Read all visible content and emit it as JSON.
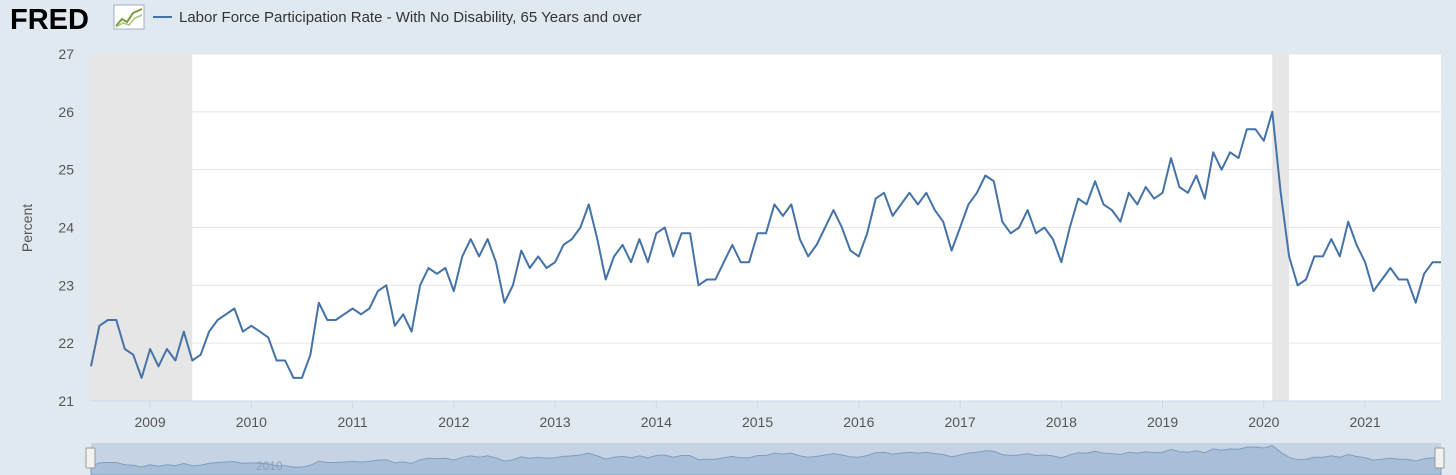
{
  "header": {
    "logo_text": "FRED",
    "legend_label": "Labor Force Participation Rate - With No Disability, 65 Years and over"
  },
  "colors": {
    "background": "#e1e9f0",
    "plot_background": "#ffffff",
    "series_line": "#4572a7",
    "recession_band": "#e6e6e6",
    "navigator_fill": "#a9bfd8",
    "navigator_bar": "#c5d3e4",
    "logo": "#000000"
  },
  "navigator": {
    "year_label": "2010"
  },
  "chart_data": {
    "type": "line",
    "ylabel": "Percent",
    "ylim": [
      21,
      27
    ],
    "y_ticks": [
      "21",
      "22",
      "23",
      "24",
      "25",
      "26",
      "27"
    ],
    "x_ticks": [
      "2009",
      "2010",
      "2011",
      "2012",
      "2013",
      "2014",
      "2015",
      "2016",
      "2017",
      "2018",
      "2019",
      "2020",
      "2021"
    ],
    "x_range": [
      "2008-06",
      "2021-10"
    ],
    "recessions": [
      [
        "2008-06",
        "2009-06"
      ],
      [
        "2020-02",
        "2020-04"
      ]
    ],
    "grid": true,
    "legend": "top-left",
    "series": [
      {
        "name": "Labor Force Participation Rate - With No Disability, 65 Years and over",
        "x": [
          "2008-06",
          "2008-07",
          "2008-08",
          "2008-09",
          "2008-10",
          "2008-11",
          "2008-12",
          "2009-01",
          "2009-02",
          "2009-03",
          "2009-04",
          "2009-05",
          "2009-06",
          "2009-07",
          "2009-08",
          "2009-09",
          "2009-10",
          "2009-11",
          "2009-12",
          "2010-01",
          "2010-02",
          "2010-03",
          "2010-04",
          "2010-05",
          "2010-06",
          "2010-07",
          "2010-08",
          "2010-09",
          "2010-10",
          "2010-11",
          "2010-12",
          "2011-01",
          "2011-02",
          "2011-03",
          "2011-04",
          "2011-05",
          "2011-06",
          "2011-07",
          "2011-08",
          "2011-09",
          "2011-10",
          "2011-11",
          "2011-12",
          "2012-01",
          "2012-02",
          "2012-03",
          "2012-04",
          "2012-05",
          "2012-06",
          "2012-07",
          "2012-08",
          "2012-09",
          "2012-10",
          "2012-11",
          "2012-12",
          "2013-01",
          "2013-02",
          "2013-03",
          "2013-04",
          "2013-05",
          "2013-06",
          "2013-07",
          "2013-08",
          "2013-09",
          "2013-10",
          "2013-11",
          "2013-12",
          "2014-01",
          "2014-02",
          "2014-03",
          "2014-04",
          "2014-05",
          "2014-06",
          "2014-07",
          "2014-08",
          "2014-09",
          "2014-10",
          "2014-11",
          "2014-12",
          "2015-01",
          "2015-02",
          "2015-03",
          "2015-04",
          "2015-05",
          "2015-06",
          "2015-07",
          "2015-08",
          "2015-09",
          "2015-10",
          "2015-11",
          "2015-12",
          "2016-01",
          "2016-02",
          "2016-03",
          "2016-04",
          "2016-05",
          "2016-06",
          "2016-07",
          "2016-08",
          "2016-09",
          "2016-10",
          "2016-11",
          "2016-12",
          "2017-01",
          "2017-02",
          "2017-03",
          "2017-04",
          "2017-05",
          "2017-06",
          "2017-07",
          "2017-08",
          "2017-09",
          "2017-10",
          "2017-11",
          "2017-12",
          "2018-01",
          "2018-02",
          "2018-03",
          "2018-04",
          "2018-05",
          "2018-06",
          "2018-07",
          "2018-08",
          "2018-09",
          "2018-10",
          "2018-11",
          "2018-12",
          "2019-01",
          "2019-02",
          "2019-03",
          "2019-04",
          "2019-05",
          "2019-06",
          "2019-07",
          "2019-08",
          "2019-09",
          "2019-10",
          "2019-11",
          "2019-12",
          "2020-01",
          "2020-02",
          "2020-03",
          "2020-04",
          "2020-05",
          "2020-06",
          "2020-07",
          "2020-08",
          "2020-09",
          "2020-10",
          "2020-11",
          "2020-12",
          "2021-01",
          "2021-02",
          "2021-03",
          "2021-04",
          "2021-05",
          "2021-06",
          "2021-07",
          "2021-08",
          "2021-09",
          "2021-10"
        ],
        "values": [
          21.6,
          22.3,
          22.4,
          22.4,
          21.9,
          21.8,
          21.4,
          21.9,
          21.6,
          21.9,
          21.7,
          22.2,
          21.7,
          21.8,
          22.2,
          22.4,
          22.5,
          22.6,
          22.2,
          22.3,
          22.2,
          22.1,
          21.7,
          21.7,
          21.4,
          21.4,
          21.8,
          22.7,
          22.4,
          22.4,
          22.5,
          22.6,
          22.5,
          22.6,
          22.9,
          23.0,
          22.3,
          22.5,
          22.2,
          23.0,
          23.3,
          23.2,
          23.3,
          22.9,
          23.5,
          23.8,
          23.5,
          23.8,
          23.4,
          22.7,
          23.0,
          23.6,
          23.3,
          23.5,
          23.3,
          23.4,
          23.7,
          23.8,
          24.0,
          24.4,
          23.8,
          23.1,
          23.5,
          23.7,
          23.4,
          23.8,
          23.4,
          23.9,
          24.0,
          23.5,
          23.9,
          23.9,
          23.0,
          23.1,
          23.1,
          23.4,
          23.7,
          23.4,
          23.4,
          23.9,
          23.9,
          24.4,
          24.2,
          24.4,
          23.8,
          23.5,
          23.7,
          24.0,
          24.3,
          24.0,
          23.6,
          23.5,
          23.9,
          24.5,
          24.6,
          24.2,
          24.4,
          24.6,
          24.4,
          24.6,
          24.3,
          24.1,
          23.6,
          24.0,
          24.4,
          24.6,
          24.9,
          24.8,
          24.1,
          23.9,
          24.0,
          24.3,
          23.9,
          24.0,
          23.8,
          23.4,
          24.0,
          24.5,
          24.4,
          24.8,
          24.4,
          24.3,
          24.1,
          24.6,
          24.4,
          24.7,
          24.5,
          24.6,
          25.2,
          24.7,
          24.6,
          24.9,
          24.5,
          25.3,
          25.0,
          25.3,
          25.2,
          25.7,
          25.7,
          25.5,
          26.0,
          24.6,
          23.5,
          23.0,
          23.1,
          23.5,
          23.5,
          23.8,
          23.5,
          24.1,
          23.7,
          23.4,
          22.9,
          23.1,
          23.3,
          23.1,
          23.1,
          22.7,
          23.2,
          23.4,
          23.4
        ]
      }
    ]
  }
}
